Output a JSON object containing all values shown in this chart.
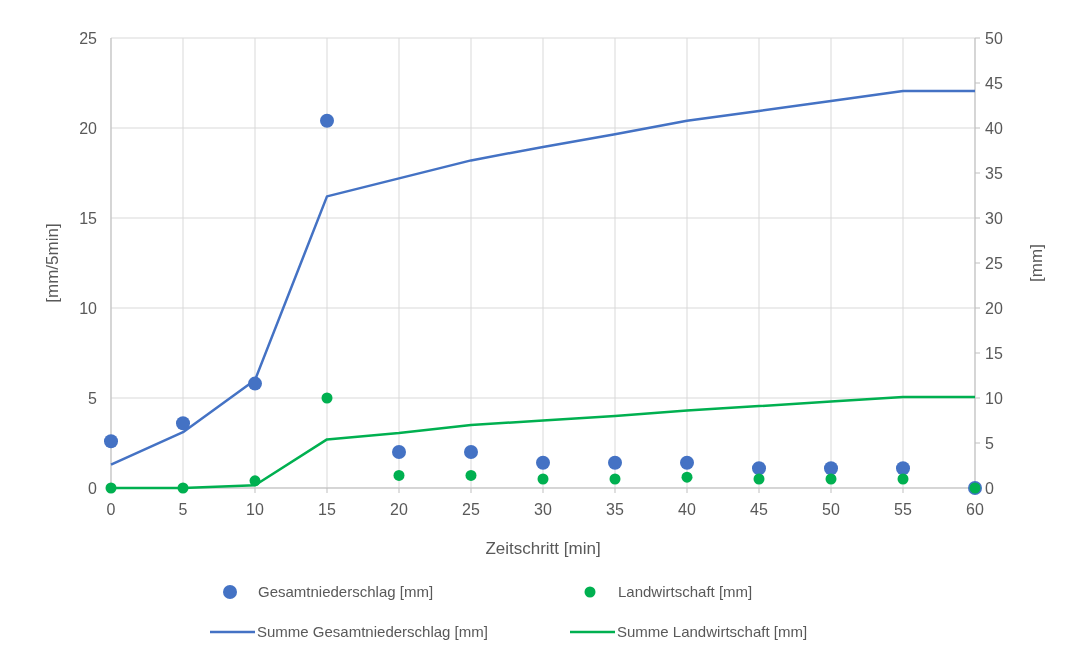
{
  "chart_data": {
    "type": "scatter",
    "xlabel": "Zeitschritt [min]",
    "ylabel": "[mm/5min]",
    "y2label": "[mm]",
    "x": [
      0,
      5,
      10,
      15,
      20,
      25,
      30,
      35,
      40,
      45,
      50,
      55,
      60
    ],
    "xlim": [
      0,
      60
    ],
    "xticks": [
      0,
      5,
      10,
      15,
      20,
      25,
      30,
      35,
      40,
      45,
      50,
      55,
      60
    ],
    "ylim": [
      0,
      25
    ],
    "yticks": [
      0,
      5,
      10,
      15,
      20,
      25
    ],
    "y2lim": [
      0,
      50
    ],
    "y2ticks": [
      0,
      5,
      10,
      15,
      20,
      25,
      30,
      35,
      40,
      45,
      50
    ],
    "grid": true,
    "legend": "bottom",
    "series": [
      {
        "name": "Gesamtniederschlag [mm]",
        "marker": "circle",
        "color": "#4472c4",
        "values": [
          2.6,
          3.6,
          5.8,
          20.4,
          2.0,
          2.0,
          1.4,
          1.4,
          1.4,
          1.1,
          1.1,
          1.1,
          0
        ]
      },
      {
        "name": "Landwirtschaft [mm]",
        "marker": "circle",
        "color": "#00b050",
        "values": [
          0,
          0,
          0.4,
          5.0,
          0.7,
          0.7,
          0.5,
          0.5,
          0.6,
          0.5,
          0.5,
          0.5,
          0
        ]
      },
      {
        "name": "Summe Gesamtniederschlag [mm]",
        "type": "line",
        "axis": "y2",
        "color": "#4472c4",
        "line_style": "solid",
        "values": [
          2.6,
          6.2,
          12.0,
          32.4,
          34.4,
          36.4,
          37.9,
          39.3,
          40.8,
          41.9,
          43.0,
          44.1,
          44.1
        ]
      },
      {
        "name": "Summe Landwirtschaft [mm]",
        "type": "line",
        "axis": "y2",
        "color": "#00b050",
        "line_style": "solid",
        "values": [
          0,
          0,
          0.3,
          5.4,
          6.1,
          7.0,
          7.5,
          8.0,
          8.6,
          9.1,
          9.6,
          10.1,
          10.1
        ]
      }
    ]
  }
}
